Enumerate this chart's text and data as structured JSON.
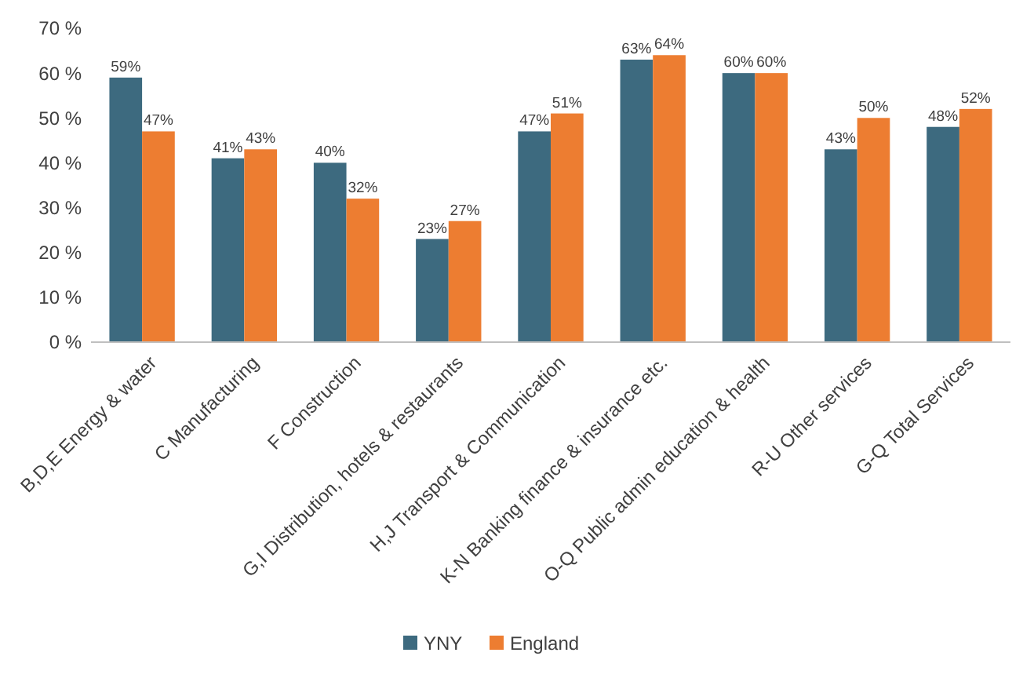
{
  "chart_data": {
    "type": "bar",
    "categories": [
      "B,D,E Energy & water",
      "C Manufacturing",
      "F Construction",
      "G,I Distribution, hotels & restaurants",
      "H,J Transport & Communication",
      "K-N Banking finance & insurance etc.",
      "O-Q Public admin education & health",
      "R-U Other services",
      "G-Q Total Services"
    ],
    "series": [
      {
        "name": "YNY",
        "color": "#3d6a7f",
        "values": [
          59,
          41,
          40,
          23,
          47,
          63,
          60,
          43,
          48
        ],
        "value_labels": [
          "59%",
          "41%",
          "40%",
          "23%",
          "47%",
          "63%",
          "60%",
          "43%",
          "48%"
        ]
      },
      {
        "name": "England",
        "color": "#ed7d31",
        "values": [
          47,
          43,
          32,
          27,
          51,
          64,
          60,
          50,
          52
        ],
        "value_labels": [
          "47%",
          "43%",
          "32%",
          "27%",
          "51%",
          "64%",
          "60%",
          "50%",
          "52%"
        ]
      }
    ],
    "ylim": [
      0,
      70
    ],
    "yticks": [
      {
        "value": 0,
        "label": "0 %"
      },
      {
        "value": 10,
        "label": "10 %"
      },
      {
        "value": 20,
        "label": "20 %"
      },
      {
        "value": 30,
        "label": "30 %"
      },
      {
        "value": 40,
        "label": "40 %"
      },
      {
        "value": 50,
        "label": "50 %"
      },
      {
        "value": 60,
        "label": "60 %"
      },
      {
        "value": 70,
        "label": "70 %"
      }
    ],
    "legend": "bottom"
  }
}
